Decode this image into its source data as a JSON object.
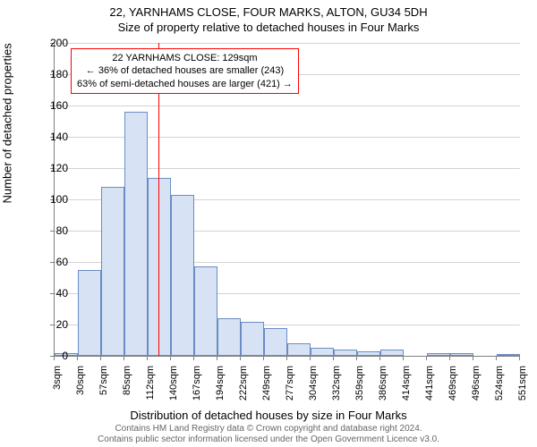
{
  "title": "22, YARNHAMS CLOSE, FOUR MARKS, ALTON, GU34 5DH",
  "subtitle": "Size of property relative to detached houses in Four Marks",
  "y_label": "Number of detached properties",
  "x_label": "Distribution of detached houses by size in Four Marks",
  "footer_line1": "Contains HM Land Registry data © Crown copyright and database right 2024.",
  "footer_line2": "Contains public sector information licensed under the Open Government Licence v3.0.",
  "annotation": {
    "line1": "22 YARNHAMS CLOSE: 129sqm",
    "line2": "← 36% of detached houses are smaller (243)",
    "line3": "63% of semi-detached houses are larger (421) →"
  },
  "chart": {
    "type": "histogram",
    "ylim": [
      0,
      200
    ],
    "ytick_step": 20,
    "x_start": 3,
    "x_end": 570,
    "x_tick_step": 27.5,
    "x_tick_count": 21,
    "x_tick_labels": [
      "3sqm",
      "30sqm",
      "57sqm",
      "85sqm",
      "112sqm",
      "140sqm",
      "167sqm",
      "194sqm",
      "222sqm",
      "249sqm",
      "277sqm",
      "304sqm",
      "332sqm",
      "359sqm",
      "386sqm",
      "414sqm",
      "441sqm",
      "469sqm",
      "496sqm",
      "524sqm",
      "551sqm"
    ],
    "bar_color": "#d7e3f4",
    "bar_border_color": "#6a8cc4",
    "grid_color": "#d3d3d3",
    "axis_color": "#808080",
    "reference_line_color": "#ff0000",
    "reference_value": 129,
    "bars": [
      {
        "bin": 1,
        "value": 2
      },
      {
        "bin": 2,
        "value": 55
      },
      {
        "bin": 3,
        "value": 108
      },
      {
        "bin": 4,
        "value": 156
      },
      {
        "bin": 5,
        "value": 114
      },
      {
        "bin": 6,
        "value": 103
      },
      {
        "bin": 7,
        "value": 57
      },
      {
        "bin": 8,
        "value": 24
      },
      {
        "bin": 9,
        "value": 22
      },
      {
        "bin": 10,
        "value": 18
      },
      {
        "bin": 11,
        "value": 8
      },
      {
        "bin": 12,
        "value": 5
      },
      {
        "bin": 13,
        "value": 4
      },
      {
        "bin": 14,
        "value": 3
      },
      {
        "bin": 15,
        "value": 4
      },
      {
        "bin": 16,
        "value": 0
      },
      {
        "bin": 17,
        "value": 2
      },
      {
        "bin": 18,
        "value": 2
      },
      {
        "bin": 19,
        "value": 0
      },
      {
        "bin": 20,
        "value": 1
      }
    ]
  }
}
